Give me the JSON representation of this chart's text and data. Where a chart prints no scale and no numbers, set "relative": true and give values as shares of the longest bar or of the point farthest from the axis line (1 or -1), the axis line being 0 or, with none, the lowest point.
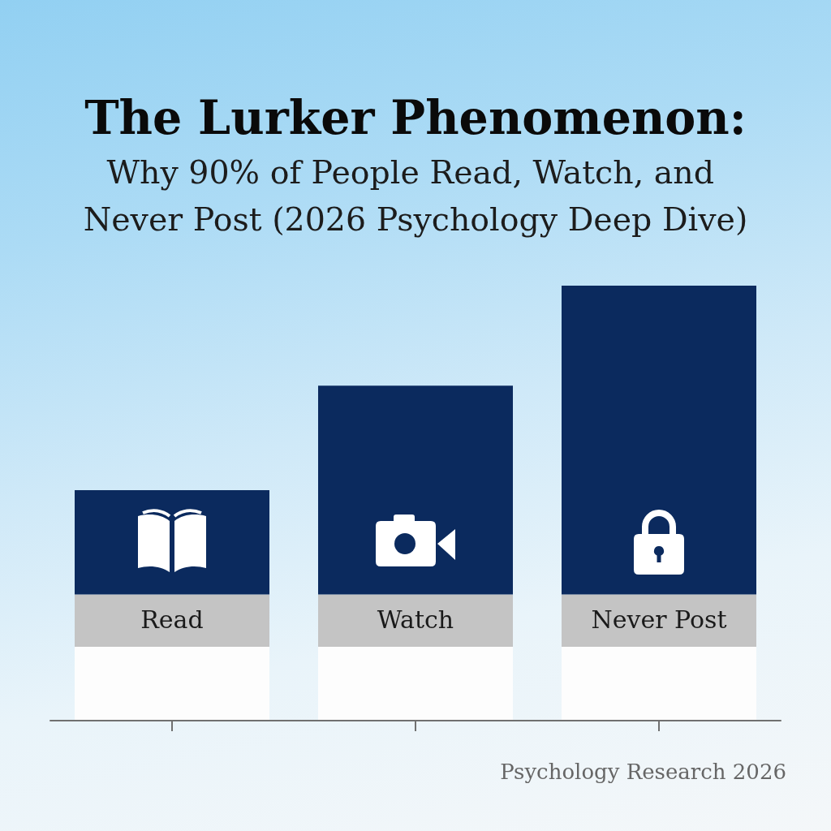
{
  "chart_data": {
    "type": "bar",
    "title": "The Lurker Phenomenon:",
    "subtitle": "Why 90% of People Read, Watch, and Never Post (2026 Psychology Deep Dive)",
    "categories": [
      "Read",
      "Watch",
      "Never Post"
    ],
    "stacked": true,
    "series": [
      {
        "color": "#fdfdfd",
        "values": [
          0.17,
          0.17,
          0.17
        ]
      },
      {
        "color": "#c4c4c4",
        "values": [
          0.12,
          0.12,
          0.12
        ]
      },
      {
        "color": "#0b2a5e",
        "values": [
          0.24,
          0.48,
          0.71
        ]
      }
    ],
    "relative": true,
    "grid": false,
    "tick_labels": "x",
    "annotations": [
      "Psychology Research 2026"
    ]
  }
}
